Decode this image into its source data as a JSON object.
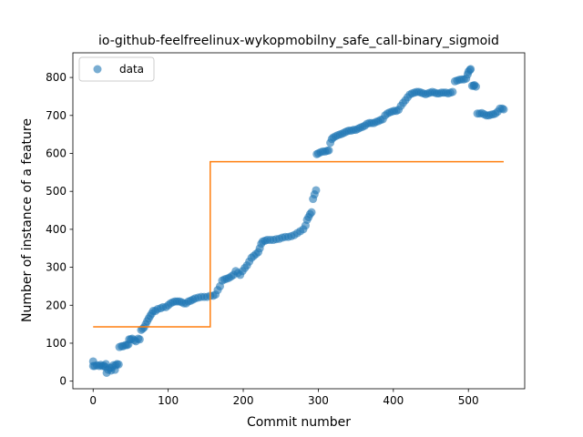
{
  "chart_data": {
    "type": "scatter",
    "title": "io-github-feelfreelinux-wykopmobilny_safe_call-binary_sigmoid",
    "xlabel": "Commit number",
    "ylabel": "Number of instance of a feature",
    "xlim": [
      -27,
      575
    ],
    "ylim": [
      -20,
      865
    ],
    "xticks": [
      0,
      100,
      200,
      300,
      400,
      500
    ],
    "yticks": [
      0,
      100,
      200,
      300,
      400,
      500,
      600,
      700,
      800
    ],
    "legend": {
      "placement": "top-left",
      "entries": [
        "data"
      ]
    },
    "series": [
      {
        "name": "data",
        "kind": "scatter",
        "color": "#1f77b4",
        "points": [
          [
            0,
            40
          ],
          [
            0,
            52
          ],
          [
            2,
            40
          ],
          [
            5,
            42
          ],
          [
            8,
            40
          ],
          [
            10,
            43
          ],
          [
            12,
            40
          ],
          [
            14,
            41
          ],
          [
            16,
            38
          ],
          [
            17,
            45
          ],
          [
            18,
            22
          ],
          [
            20,
            30
          ],
          [
            22,
            35
          ],
          [
            24,
            28
          ],
          [
            25,
            36
          ],
          [
            27,
            42
          ],
          [
            29,
            30
          ],
          [
            30,
            42
          ],
          [
            32,
            45
          ],
          [
            34,
            44
          ],
          [
            35,
            90
          ],
          [
            38,
            92
          ],
          [
            40,
            92
          ],
          [
            43,
            95
          ],
          [
            45,
            95
          ],
          [
            47,
            97
          ],
          [
            48,
            110
          ],
          [
            50,
            110
          ],
          [
            52,
            112
          ],
          [
            55,
            108
          ],
          [
            57,
            105
          ],
          [
            60,
            112
          ],
          [
            62,
            110
          ],
          [
            64,
            135
          ],
          [
            66,
            138
          ],
          [
            68,
            142
          ],
          [
            70,
            150
          ],
          [
            72,
            158
          ],
          [
            74,
            165
          ],
          [
            76,
            172
          ],
          [
            78,
            178
          ],
          [
            80,
            185
          ],
          [
            83,
            185
          ],
          [
            86,
            190
          ],
          [
            90,
            192
          ],
          [
            93,
            195
          ],
          [
            97,
            195
          ],
          [
            100,
            200
          ],
          [
            103,
            205
          ],
          [
            106,
            208
          ],
          [
            109,
            210
          ],
          [
            112,
            210
          ],
          [
            115,
            210
          ],
          [
            118,
            208
          ],
          [
            121,
            205
          ],
          [
            124,
            205
          ],
          [
            127,
            210
          ],
          [
            130,
            212
          ],
          [
            133,
            215
          ],
          [
            136,
            218
          ],
          [
            140,
            220
          ],
          [
            144,
            222
          ],
          [
            148,
            222
          ],
          [
            152,
            222
          ],
          [
            156,
            225
          ],
          [
            160,
            225
          ],
          [
            163,
            228
          ],
          [
            166,
            240
          ],
          [
            169,
            250
          ],
          [
            172,
            265
          ],
          [
            175,
            268
          ],
          [
            178,
            270
          ],
          [
            181,
            272
          ],
          [
            184,
            276
          ],
          [
            187,
            280
          ],
          [
            190,
            290
          ],
          [
            193,
            285
          ],
          [
            196,
            280
          ],
          [
            199,
            290
          ],
          [
            202,
            298
          ],
          [
            205,
            305
          ],
          [
            208,
            315
          ],
          [
            211,
            325
          ],
          [
            214,
            330
          ],
          [
            217,
            335
          ],
          [
            220,
            340
          ],
          [
            222,
            350
          ],
          [
            224,
            362
          ],
          [
            226,
            368
          ],
          [
            229,
            370
          ],
          [
            232,
            372
          ],
          [
            236,
            372
          ],
          [
            240,
            372
          ],
          [
            244,
            374
          ],
          [
            248,
            375
          ],
          [
            252,
            378
          ],
          [
            256,
            380
          ],
          [
            260,
            380
          ],
          [
            264,
            382
          ],
          [
            268,
            385
          ],
          [
            272,
            390
          ],
          [
            276,
            395
          ],
          [
            280,
            400
          ],
          [
            283,
            410
          ],
          [
            285,
            425
          ],
          [
            287,
            432
          ],
          [
            289,
            440
          ],
          [
            291,
            445
          ],
          [
            293,
            480
          ],
          [
            295,
            492
          ],
          [
            297,
            503
          ],
          [
            298,
            598
          ],
          [
            300,
            600
          ],
          [
            303,
            603
          ],
          [
            306,
            605
          ],
          [
            309,
            605
          ],
          [
            312,
            607
          ],
          [
            314,
            608
          ],
          [
            316,
            628
          ],
          [
            318,
            638
          ],
          [
            320,
            642
          ],
          [
            323,
            645
          ],
          [
            326,
            648
          ],
          [
            329,
            650
          ],
          [
            332,
            652
          ],
          [
            335,
            655
          ],
          [
            338,
            658
          ],
          [
            341,
            660
          ],
          [
            344,
            660
          ],
          [
            347,
            662
          ],
          [
            350,
            662
          ],
          [
            353,
            665
          ],
          [
            356,
            668
          ],
          [
            359,
            670
          ],
          [
            362,
            673
          ],
          [
            365,
            678
          ],
          [
            368,
            680
          ],
          [
            371,
            680
          ],
          [
            374,
            680
          ],
          [
            377,
            683
          ],
          [
            380,
            685
          ],
          [
            383,
            688
          ],
          [
            386,
            690
          ],
          [
            389,
            700
          ],
          [
            392,
            705
          ],
          [
            395,
            708
          ],
          [
            398,
            710
          ],
          [
            401,
            712
          ],
          [
            404,
            712
          ],
          [
            407,
            715
          ],
          [
            410,
            725
          ],
          [
            413,
            733
          ],
          [
            416,
            740
          ],
          [
            419,
            748
          ],
          [
            422,
            755
          ],
          [
            425,
            758
          ],
          [
            428,
            760
          ],
          [
            431,
            762
          ],
          [
            434,
            762
          ],
          [
            437,
            760
          ],
          [
            440,
            758
          ],
          [
            443,
            756
          ],
          [
            446,
            758
          ],
          [
            449,
            760
          ],
          [
            452,
            762
          ],
          [
            455,
            760
          ],
          [
            458,
            758
          ],
          [
            461,
            758
          ],
          [
            464,
            760
          ],
          [
            467,
            760
          ],
          [
            470,
            760
          ],
          [
            473,
            758
          ],
          [
            476,
            760
          ],
          [
            479,
            762
          ],
          [
            482,
            790
          ],
          [
            485,
            792
          ],
          [
            488,
            794
          ],
          [
            491,
            795
          ],
          [
            494,
            795
          ],
          [
            497,
            797
          ],
          [
            499,
            808
          ],
          [
            500,
            815
          ],
          [
            502,
            820
          ],
          [
            503,
            822
          ],
          [
            505,
            778
          ],
          [
            507,
            778
          ],
          [
            508,
            780
          ],
          [
            510,
            776
          ],
          [
            512,
            705
          ],
          [
            515,
            705
          ],
          [
            518,
            706
          ],
          [
            521,
            703
          ],
          [
            524,
            700
          ],
          [
            527,
            700
          ],
          [
            530,
            702
          ],
          [
            533,
            703
          ],
          [
            536,
            705
          ],
          [
            539,
            710
          ],
          [
            542,
            718
          ],
          [
            545,
            718
          ],
          [
            547,
            716
          ]
        ]
      },
      {
        "name": "",
        "kind": "step",
        "color": "#ff7f0e",
        "points": [
          [
            0,
            143
          ],
          [
            156,
            143
          ],
          [
            156,
            578
          ],
          [
            547,
            578
          ]
        ]
      }
    ]
  }
}
